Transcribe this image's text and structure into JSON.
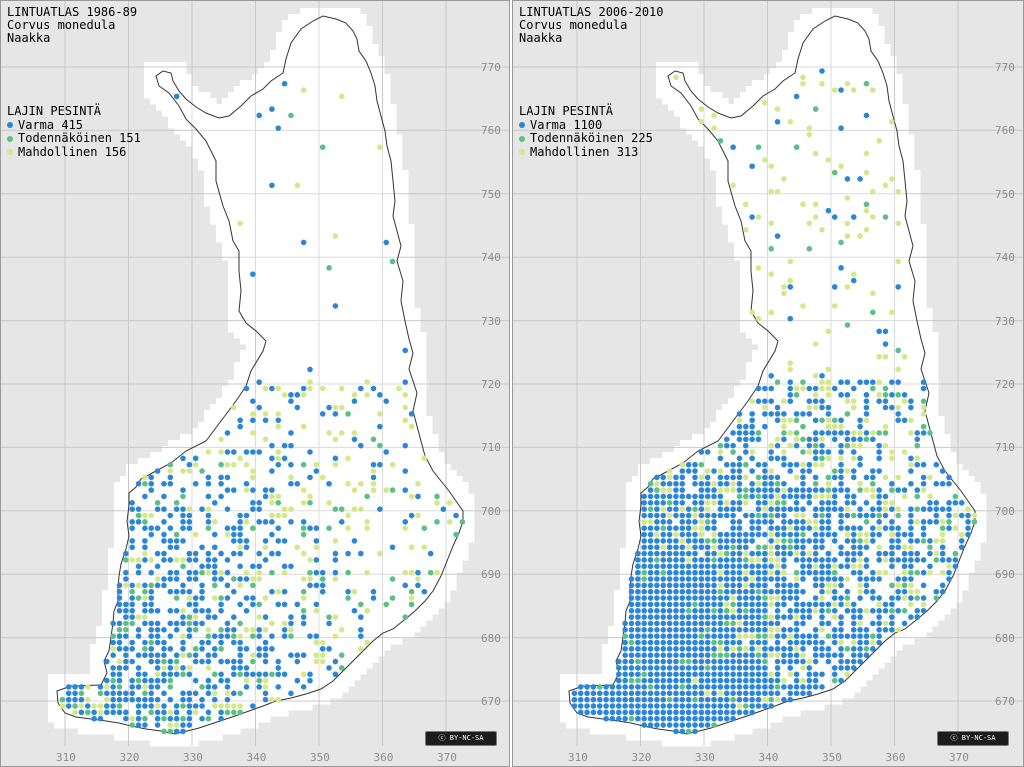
{
  "colors": {
    "varma": "#2c86d6",
    "todennakoinen": "#5dbf84",
    "mahdollinen": "#d4e88a",
    "background": "#e6e6e6",
    "land": "#ffffff"
  },
  "map_views": [
    {
      "title": "LINTUATLAS 1986-89",
      "species_latin": "Corvus monedula",
      "species_finnish": "Naakka",
      "legend_title": "LAJIN PESINTÄ",
      "legend": [
        {
          "label": "Varma 415",
          "color_key": "varma"
        },
        {
          "label": "Todennäköinen 151",
          "color_key": "todennakoinen"
        },
        {
          "label": "Mahdollinen 156",
          "color_key": "mahdollinen"
        }
      ],
      "y_ticks": [
        "770",
        "760",
        "750",
        "740",
        "730",
        "720",
        "710",
        "700",
        "690",
        "680",
        "670"
      ],
      "x_ticks": [
        "310",
        "320",
        "330",
        "340",
        "350",
        "360",
        "370"
      ],
      "license": "BY-NC-SA"
    },
    {
      "title": "LINTUATLAS 2006-2010",
      "species_latin": "Corvus monedula",
      "species_finnish": "Naakka",
      "legend_title": "LAJIN PESINTÄ",
      "legend": [
        {
          "label": "Varma 1100",
          "color_key": "varma"
        },
        {
          "label": "Todennäköinen 225",
          "color_key": "todennakoinen"
        },
        {
          "label": "Mahdollinen 313",
          "color_key": "mahdollinen"
        }
      ],
      "y_ticks": [
        "770",
        "760",
        "750",
        "740",
        "730",
        "720",
        "710",
        "700",
        "690",
        "680",
        "670"
      ],
      "x_ticks": [
        "310",
        "320",
        "330",
        "340",
        "350",
        "360",
        "370"
      ],
      "license": "BY-NC-SA"
    }
  ]
}
